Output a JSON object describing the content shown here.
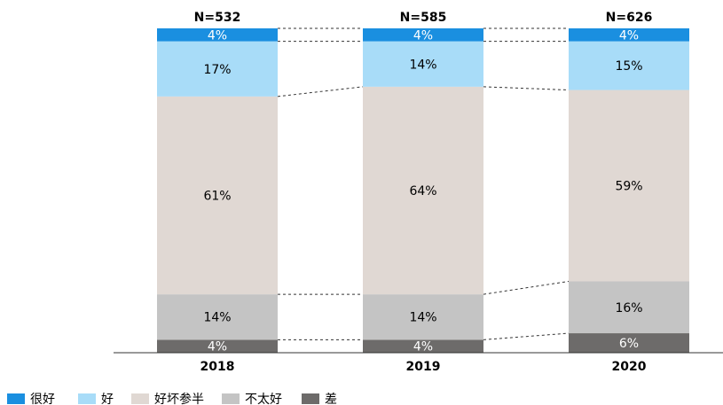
{
  "chart_data": {
    "type": "stacked_bar",
    "annotations": [
      "N=532",
      "N=585",
      "N=626"
    ],
    "categories": [
      "2018",
      "2019",
      "2020"
    ],
    "series": [
      {
        "name": "很好",
        "color": "#1a8fe0",
        "label_color": "#ffffff",
        "values": [
          4,
          4,
          4
        ],
        "value_labels": [
          "4%",
          "4%",
          "4%"
        ]
      },
      {
        "name": "好",
        "color": "#a8dcf8",
        "label_color": "#000000",
        "values": [
          17,
          14,
          15
        ],
        "value_labels": [
          "17%",
          "14%",
          "15%"
        ]
      },
      {
        "name": "好坏参半",
        "color": "#e0d8d3",
        "label_color": "#000000",
        "values": [
          61,
          64,
          59
        ],
        "value_labels": [
          "61%",
          "64%",
          "59%"
        ]
      },
      {
        "name": "不太好",
        "color": "#c4c4c4",
        "label_color": "#000000",
        "values": [
          14,
          14,
          16
        ],
        "value_labels": [
          "14%",
          "14%",
          "16%"
        ]
      },
      {
        "name": "差",
        "color": "#6d6b6a",
        "label_color": "#ffffff",
        "values": [
          4,
          4,
          6
        ],
        "value_labels": [
          "4%",
          "4%",
          "6%"
        ]
      }
    ],
    "ylim": [
      0,
      100
    ]
  }
}
